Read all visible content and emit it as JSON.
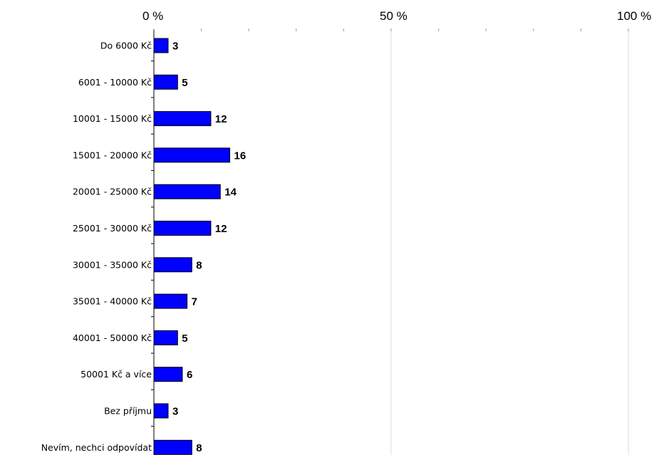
{
  "chart_data": {
    "type": "bar",
    "orientation": "horizontal",
    "title": "",
    "xlabel": "",
    "ylabel": "",
    "xlim": [
      0,
      100
    ],
    "x_tick_labels": [
      "0 %",
      "50 %",
      "100 %"
    ],
    "x_axis_position": "top",
    "grid": true,
    "bar_color": "#0000ff",
    "categories": [
      "Do 6000 Kč",
      "6001 - 10000 Kč",
      "10001 - 15000 Kč",
      "15001 - 20000 Kč",
      "20001 - 25000 Kč",
      "25001 - 30000 Kč",
      "30001 - 35000 Kč",
      "35001 - 40000 Kč",
      "40001 - 50000 Kč",
      "50001 Kč a více",
      "Bez příjmu",
      "Nevím, nechci odpovídat"
    ],
    "values": [
      3,
      5,
      12,
      16,
      14,
      12,
      8,
      7,
      5,
      6,
      3,
      8
    ],
    "data_labels": [
      "3",
      "5",
      "12",
      "16",
      "14",
      "12",
      "8",
      "7",
      "5",
      "6",
      "3",
      "8"
    ]
  }
}
